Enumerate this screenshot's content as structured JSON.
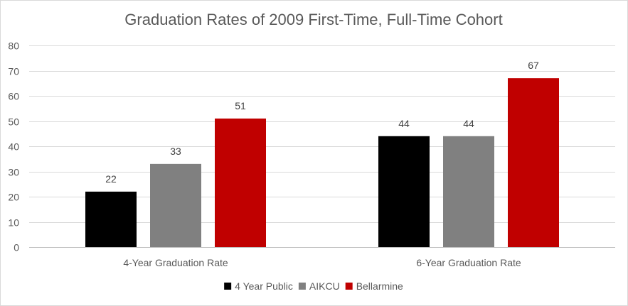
{
  "chart_data": {
    "type": "bar",
    "title": "Graduation Rates of 2009 First-Time, Full-Time Cohort",
    "categories": [
      "4-Year Graduation Rate",
      "6-Year Graduation Rate"
    ],
    "series": [
      {
        "name": "4 Year Public",
        "color": "#000000",
        "values": [
          22,
          44
        ]
      },
      {
        "name": "AIKCU",
        "color": "#808080",
        "values": [
          33,
          44
        ]
      },
      {
        "name": "Bellarmine",
        "color": "#c00000",
        "values": [
          51,
          67
        ]
      }
    ],
    "xlabel": "",
    "ylabel": "",
    "ylim": [
      0,
      80
    ],
    "yticks": [
      0,
      10,
      20,
      30,
      40,
      50,
      60,
      70,
      80
    ],
    "grid": true,
    "data_labels": true,
    "legend_position": "bottom"
  }
}
